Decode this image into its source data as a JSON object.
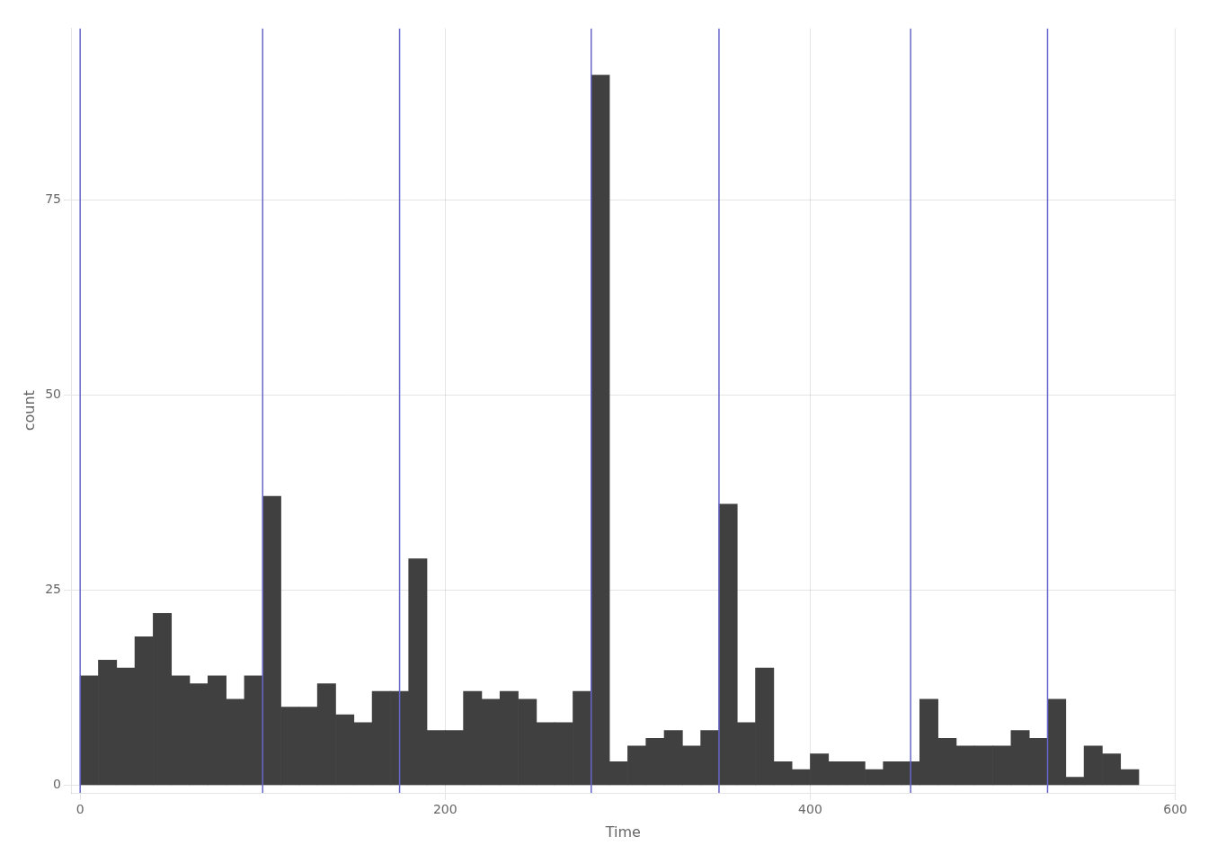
{
  "chart_data": {
    "type": "histogram",
    "xlabel": "Time",
    "ylabel": "count",
    "bins": [
      0,
      10,
      20,
      30,
      40,
      50,
      60,
      70,
      80,
      90,
      100,
      110,
      120,
      130,
      140,
      150,
      160,
      170,
      180,
      190,
      200,
      210,
      220,
      230,
      240,
      250,
      260,
      270,
      280,
      290,
      300,
      310,
      320,
      330,
      340,
      350,
      360,
      370,
      380,
      390,
      400,
      410,
      420,
      430,
      440,
      450,
      460,
      470,
      480,
      490,
      500,
      510,
      520,
      530,
      540,
      550,
      560,
      570,
      580
    ],
    "values": [
      14,
      16,
      15,
      19,
      22,
      14,
      13,
      14,
      11,
      14,
      37,
      10,
      10,
      13,
      9,
      8,
      12,
      12,
      29,
      7,
      7,
      12,
      11,
      12,
      11,
      8,
      8,
      12,
      91,
      3,
      5,
      6,
      7,
      5,
      7,
      36,
      8,
      15,
      3,
      2,
      4,
      3,
      3,
      2,
      3,
      3,
      11,
      6,
      5,
      5,
      5,
      7,
      6,
      11,
      1,
      5,
      4,
      2
    ],
    "color": "#404040",
    "vlines": {
      "x": [
        0,
        100,
        175,
        280,
        350,
        455,
        530
      ],
      "color": "#6666cc"
    },
    "xlim": [
      -5,
      600
    ],
    "ylim": [
      -1,
      97
    ],
    "xticks": [
      0,
      200,
      400,
      600
    ],
    "yticks": [
      0,
      25,
      50,
      75
    ],
    "grid": true
  }
}
